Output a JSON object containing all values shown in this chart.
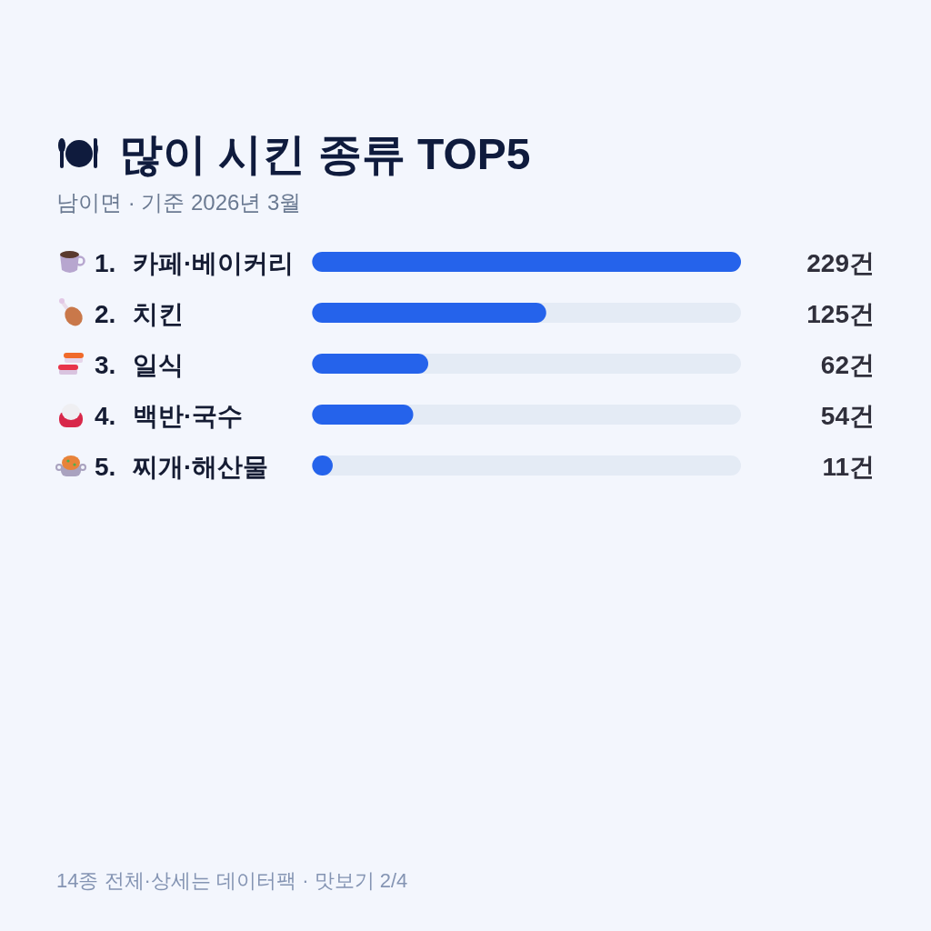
{
  "chart_data": {
    "type": "bar",
    "orientation": "horizontal",
    "title": "많이 시킨 종류 TOP5",
    "subtitle": "남이면 · 기준 2026년 3월",
    "categories": [
      "1. 카페·베이커리",
      "2. 치킨",
      "3. 일식",
      "4. 백반·국수",
      "5. 찌개·해산물"
    ],
    "values": [
      229,
      125,
      62,
      54,
      11
    ],
    "value_labels": [
      "229건",
      "125건",
      "62건",
      "54건",
      "11건"
    ],
    "color": "#2563eb",
    "annotations": [
      "14종 전체·상세는 데이터팩 · 맛보기 2/4"
    ]
  }
}
